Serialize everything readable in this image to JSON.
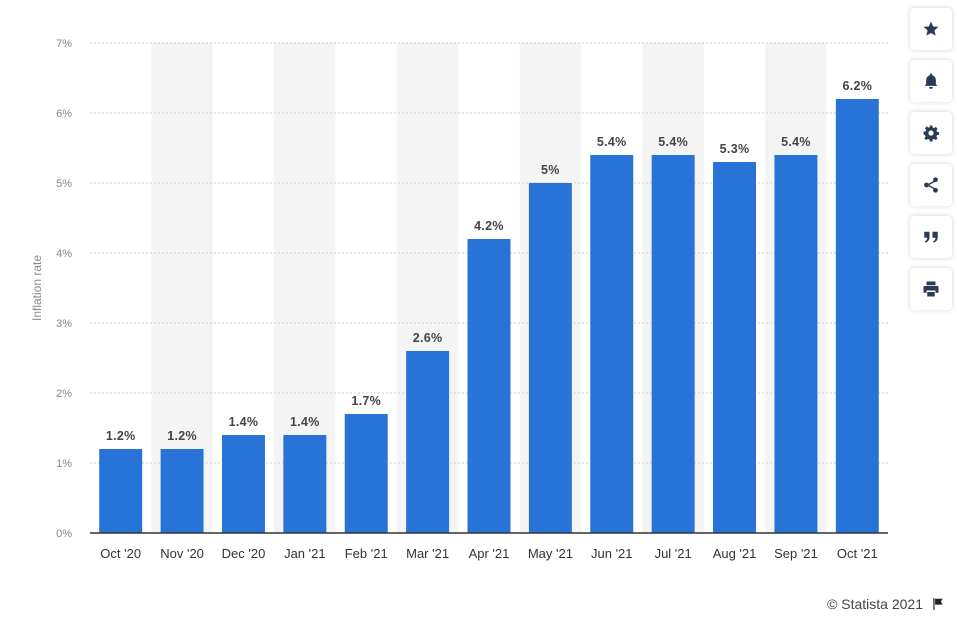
{
  "chart_data": {
    "type": "bar",
    "categories": [
      "Oct '20",
      "Nov '20",
      "Dec '20",
      "Jan '21",
      "Feb '21",
      "Mar '21",
      "Apr '21",
      "May '21",
      "Jun '21",
      "Jul '21",
      "Aug '21",
      "Sep '21",
      "Oct '21"
    ],
    "values": [
      1.2,
      1.2,
      1.4,
      1.4,
      1.7,
      2.6,
      4.2,
      5.0,
      5.4,
      5.4,
      5.3,
      5.4,
      6.2
    ],
    "value_labels": [
      "1.2%",
      "1.2%",
      "1.4%",
      "1.4%",
      "1.7%",
      "2.6%",
      "4.2%",
      "5%",
      "5.4%",
      "5.4%",
      "5.3%",
      "5.4%",
      "6.2%"
    ],
    "title": "",
    "xlabel": "",
    "ylabel": "Inflation rate",
    "ylim": [
      0,
      7
    ],
    "yticks": [
      0,
      1,
      2,
      3,
      4,
      5,
      6,
      7
    ],
    "ytick_labels": [
      "0%",
      "1%",
      "2%",
      "3%",
      "4%",
      "5%",
      "6%",
      "7%"
    ],
    "grid": true,
    "bar_color": "#2873d8",
    "band_color": "#f4f4f4"
  },
  "toolbar": {
    "buttons": [
      {
        "name": "favorite-button",
        "icon": "star-icon"
      },
      {
        "name": "notification-button",
        "icon": "bell-icon"
      },
      {
        "name": "settings-button",
        "icon": "gear-icon"
      },
      {
        "name": "share-button",
        "icon": "share-icon"
      },
      {
        "name": "cite-button",
        "icon": "quote-icon"
      },
      {
        "name": "print-button",
        "icon": "print-icon"
      }
    ]
  },
  "credit": {
    "text": "© Statista 2021",
    "icon": "flag-icon"
  }
}
